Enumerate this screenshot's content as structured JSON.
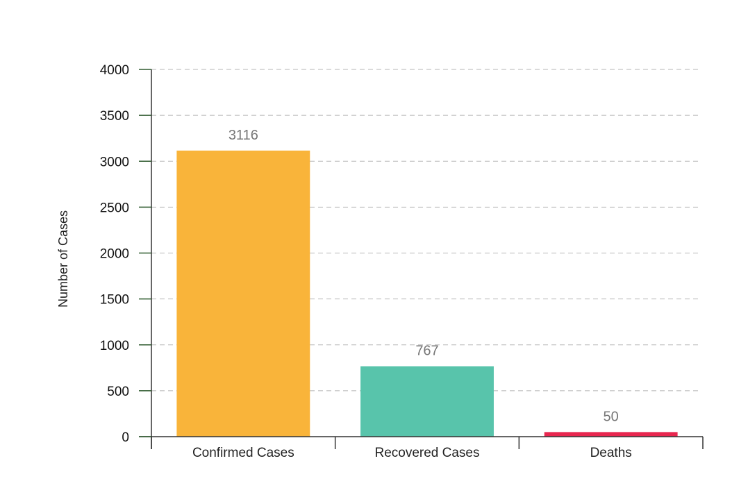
{
  "chart_data": {
    "type": "bar",
    "title": "",
    "xlabel": "",
    "ylabel": "Number of Cases",
    "categories": [
      "Confirmed Cases",
      "Recovered Cases",
      "Deaths"
    ],
    "values": [
      3116,
      767,
      50
    ],
    "value_labels": [
      "3116",
      "767",
      "50"
    ],
    "colors": [
      "#f9b43a",
      "#58c4ab",
      "#e8264f"
    ],
    "ylim": [
      0,
      4000
    ],
    "yticks": [
      0,
      500,
      1000,
      1500,
      2000,
      2500,
      3000,
      3500,
      4000
    ],
    "ytick_labels": [
      "0",
      "500",
      "1000",
      "1500",
      "2000",
      "2500",
      "3000",
      "3500",
      "4000"
    ],
    "grid": true,
    "grid_style": "dashed",
    "legend": "none"
  }
}
